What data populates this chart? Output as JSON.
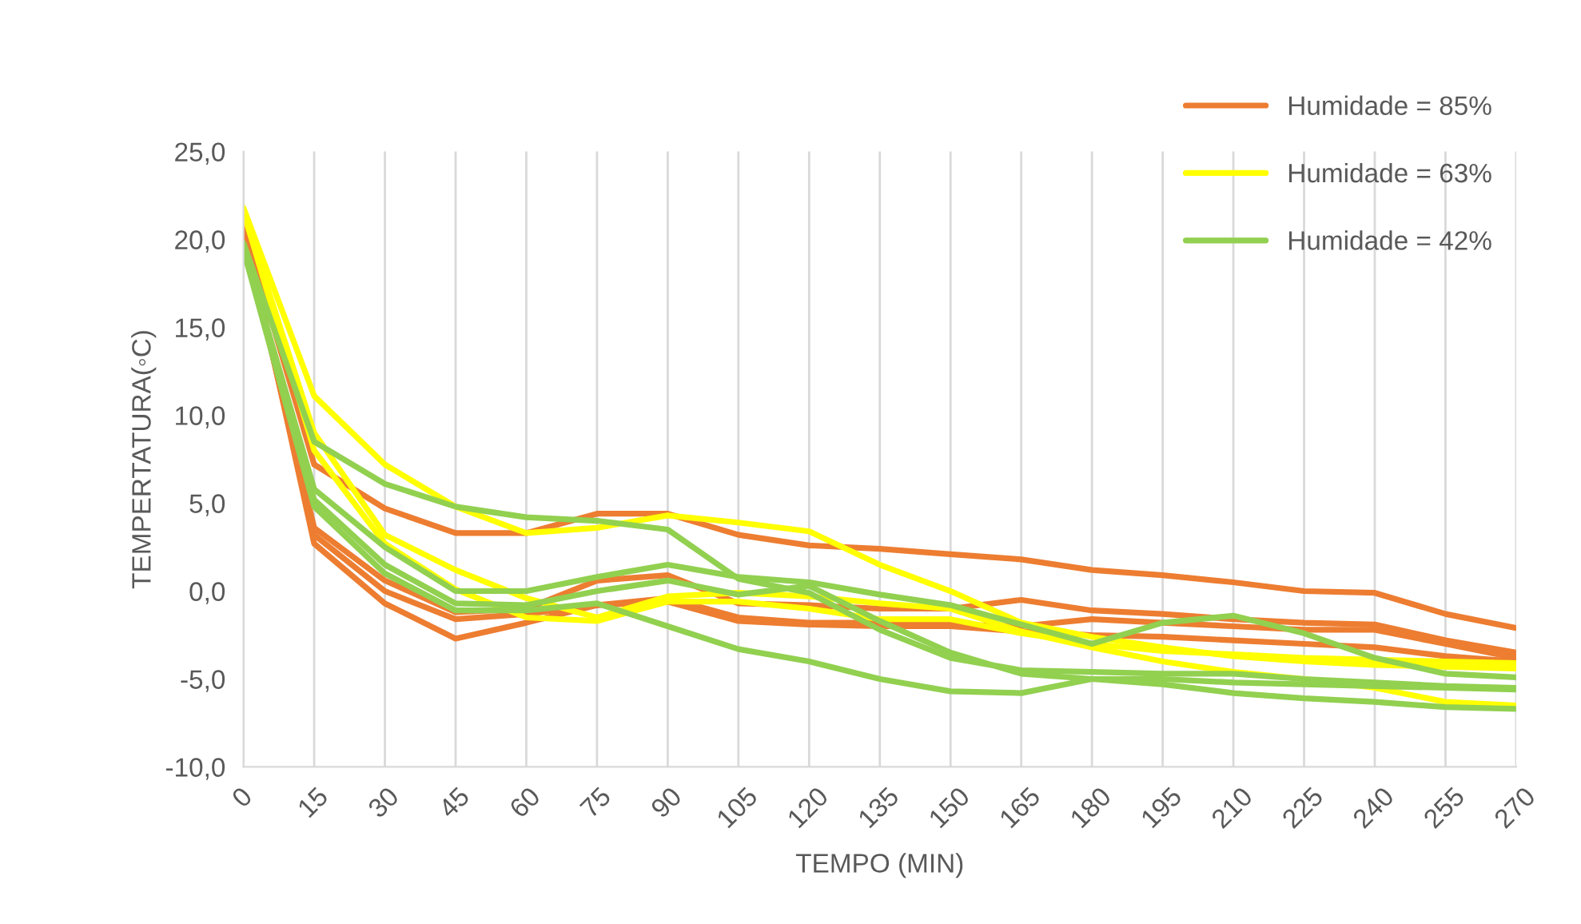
{
  "chart_data": {
    "type": "line",
    "xlabel": "TEMPO (MIN)",
    "ylabel": "TEMPERTATURA(◦C)",
    "x": [
      0,
      15,
      30,
      45,
      60,
      75,
      90,
      105,
      120,
      135,
      150,
      165,
      180,
      195,
      210,
      225,
      240,
      255,
      270
    ],
    "xlim": [
      0,
      270
    ],
    "xticks": [
      0,
      15,
      30,
      45,
      60,
      75,
      90,
      105,
      120,
      135,
      150,
      165,
      180,
      195,
      210,
      225,
      240,
      255,
      270
    ],
    "ylim": [
      -10,
      25
    ],
    "yticks": [
      {
        "value": -10,
        "label": "-10,0"
      },
      {
        "value": -5,
        "label": "-5,0"
      },
      {
        "value": 0,
        "label": "0,0"
      },
      {
        "value": 5,
        "label": "5,0"
      },
      {
        "value": 10,
        "label": "10,0"
      },
      {
        "value": 15,
        "label": "15,0"
      },
      {
        "value": 20,
        "label": "20,0"
      },
      {
        "value": 25,
        "label": "25,0"
      }
    ],
    "grid": "x",
    "legend": "top right",
    "marker": "none",
    "line_style": "solid",
    "series": [
      {
        "name": "Humidade = 85%",
        "color": "#ed7d31",
        "values": [
          20.8,
          7.2,
          4.7,
          3.3,
          3.3,
          4.4,
          4.4,
          3.2,
          2.6,
          2.4,
          2.1,
          1.8,
          1.2,
          0.9,
          0.5,
          0.0,
          -0.1,
          -1.3,
          -2.1
        ]
      },
      {
        "color": "#ed7d31",
        "values": [
          20.5,
          3.6,
          0.6,
          -1.2,
          -1.0,
          0.6,
          0.9,
          -0.7,
          -0.8,
          -1.0,
          -1.0,
          -0.5,
          -1.1,
          -1.3,
          -1.6,
          -1.8,
          -1.9,
          -2.8,
          -3.5
        ]
      },
      {
        "color": "#ed7d31",
        "values": [
          20.5,
          3.2,
          0.0,
          -1.6,
          -1.3,
          -0.8,
          -0.4,
          -1.5,
          -1.8,
          -1.8,
          -1.9,
          -2.0,
          -1.6,
          -1.8,
          -2.0,
          -2.2,
          -2.2,
          -3.0,
          -3.8
        ]
      },
      {
        "color": "#ed7d31",
        "values": [
          21.0,
          2.7,
          -0.7,
          -2.7,
          -1.8,
          -0.8,
          -0.6,
          -1.7,
          -1.9,
          -2.0,
          -2.0,
          -2.3,
          -2.5,
          -2.6,
          -2.8,
          -3.0,
          -3.2,
          -3.7,
          -4.0
        ]
      },
      {
        "name": "Humidade = 63%",
        "color": "#ffff00",
        "values": [
          21.8,
          11.1,
          7.2,
          4.8,
          3.3,
          3.6,
          4.3,
          3.9,
          3.4,
          1.5,
          0.0,
          -1.8,
          -2.6,
          -3.2,
          -3.7,
          -4.0,
          -4.2,
          -4.3,
          -4.4
        ]
      },
      {
        "color": "#ffff00",
        "values": [
          21.5,
          9.0,
          3.2,
          1.2,
          -0.4,
          -1.5,
          -0.3,
          -0.1,
          -0.3,
          -0.7,
          -1.0,
          -2.3,
          -3.2,
          -4.0,
          -4.6,
          -5.0,
          -5.5,
          -6.3,
          -6.5
        ]
      },
      {
        "color": "#ffff00",
        "values": [
          21.6,
          8.0,
          2.7,
          0.1,
          -1.5,
          -1.7,
          -0.6,
          -0.6,
          -1.0,
          -1.6,
          -1.6,
          -2.4,
          -3.0,
          -3.4,
          -3.6,
          -3.8,
          -3.9,
          -4.0,
          -4.1
        ]
      },
      {
        "name": "Humidade = 42%",
        "color": "#92d050",
        "values": [
          19.8,
          8.5,
          6.1,
          4.8,
          4.2,
          4.0,
          3.5,
          0.7,
          -0.1,
          -2.2,
          -3.8,
          -4.5,
          -4.6,
          -4.7,
          -4.7,
          -5.0,
          -5.2,
          -5.4,
          -5.5
        ]
      },
      {
        "color": "#92d050",
        "values": [
          19.6,
          5.8,
          2.5,
          0.0,
          0.0,
          0.8,
          1.5,
          0.8,
          0.5,
          -0.2,
          -0.8,
          -1.9,
          -3.0,
          -1.8,
          -1.4,
          -2.4,
          -3.8,
          -4.7,
          -4.9
        ]
      },
      {
        "color": "#92d050",
        "values": [
          19.5,
          5.2,
          1.5,
          -0.7,
          -0.8,
          0.0,
          0.6,
          -0.2,
          0.3,
          -1.7,
          -3.5,
          -4.7,
          -5.0,
          -5.0,
          -5.2,
          -5.3,
          -5.4,
          -5.5,
          -5.6
        ]
      },
      {
        "color": "#92d050",
        "values": [
          19.4,
          4.8,
          1.0,
          -1.1,
          -1.1,
          -0.7,
          -2.0,
          -3.3,
          -4.0,
          -5.0,
          -5.7,
          -5.8,
          -5.0,
          -5.3,
          -5.8,
          -6.1,
          -6.3,
          -6.6,
          -6.7
        ]
      }
    ]
  }
}
